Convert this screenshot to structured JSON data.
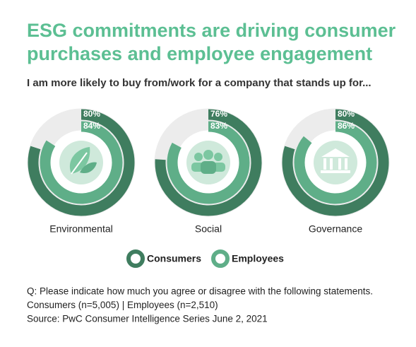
{
  "chart_data": {
    "type": "radial_bar",
    "title": [
      "ESG commitments are driving consumer",
      "purchases and employee engagement"
    ],
    "subtitle": "I am more likely to buy from/work for a company that stands up for...",
    "categories": [
      "Environmental",
      "Social",
      "Governance"
    ],
    "series": [
      {
        "name": "Consumers",
        "color": "#3f7d5f",
        "values": [
          80,
          76,
          80
        ],
        "value_labels": [
          "80%",
          "76%",
          "80%"
        ]
      },
      {
        "name": "Employees",
        "color": "#5fae88",
        "values": [
          84,
          83,
          86
        ],
        "value_labels": [
          "84%",
          "83%",
          "86%"
        ]
      }
    ],
    "notes": [
      "Q: Please indicate how much you agree or disagree with the following statements.",
      "Consumers (n=5,005) | Employees (n=2,510)",
      "Source: PwC Consumer Intelligence Series June 2, 2021"
    ]
  }
}
